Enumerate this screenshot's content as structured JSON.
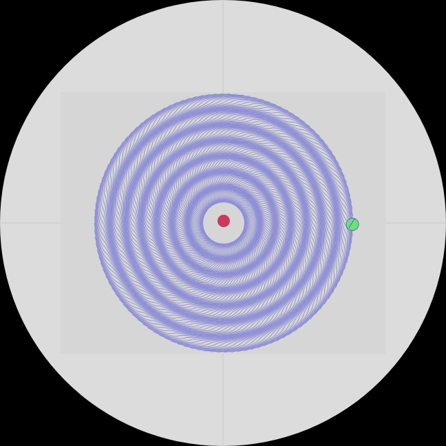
{
  "scene": {
    "background_color": "#000000",
    "disc_color": "#dcdcdc",
    "panel_color": "#d6d6d6",
    "crosshair_color": "#c8c8c8",
    "curve_color": "#7a7ad6",
    "center_color": "#c93a5c",
    "handle_color": "#6fe07a",
    "handle_stroke": "#5a7ab0"
  },
  "pattern": {
    "curve_count": 120,
    "twist_turns": 0.9,
    "wave_count": 14,
    "wave_amplitude": 0.1
  },
  "icons": {
    "center": "center-dot-icon",
    "handle": "drag-handle-icon"
  }
}
